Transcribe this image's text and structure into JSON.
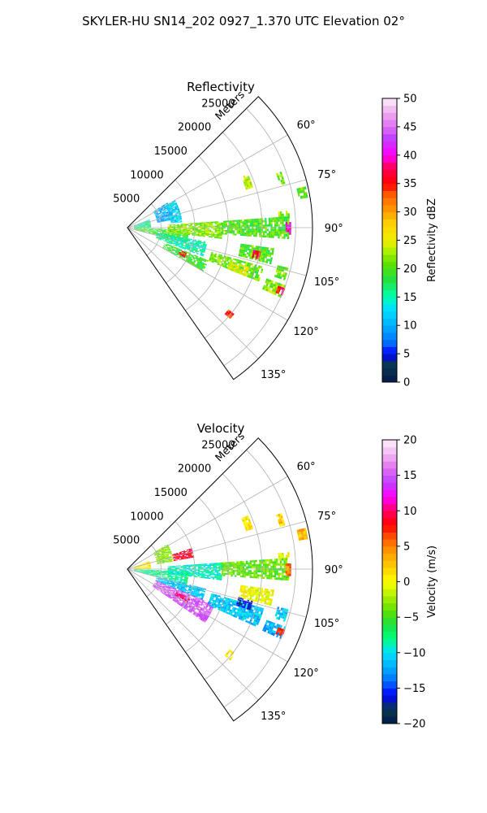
{
  "figure": {
    "suptitle": "SKYLER-HU  SN14_202  0927_1.370 UTC Elevation 02°"
  },
  "chart_data": [
    {
      "type": "heatmap",
      "projection": "polar-sector",
      "title": "Reflectivity",
      "range_label": "Meters",
      "range_ticks": [
        5000,
        10000,
        15000,
        20000,
        25000
      ],
      "range_tick_labels": [
        "5000",
        "10000",
        "15000",
        "20000",
        "25000"
      ],
      "range_max": 27500,
      "azimuth_min_deg": 45,
      "azimuth_max_deg": 145,
      "azimuth_ticks": [
        60,
        75,
        90,
        105,
        120,
        135
      ],
      "azimuth_tick_labels": [
        "60°",
        "75°",
        "90°",
        "105°",
        "120°",
        "135°"
      ],
      "grid": true,
      "colorbar": {
        "label": "Reflectivity dBZ",
        "min": 0,
        "max": 50,
        "ticks": [
          0,
          5,
          10,
          15,
          20,
          25,
          30,
          35,
          40,
          45,
          50
        ],
        "tick_labels": [
          "0",
          "5",
          "10",
          "15",
          "20",
          "25",
          "30",
          "35",
          "40",
          "45",
          "50"
        ]
      },
      "echoes": [
        {
          "az": [
            66,
            72
          ],
          "r": [
            18500,
            19500
          ],
          "v": 24
        },
        {
          "az": [
            70,
            74
          ],
          "r": [
            23500,
            24300
          ],
          "v": 22
        },
        {
          "az": [
            77,
            80
          ],
          "r": [
            25800,
            27200
          ],
          "v": 20
        },
        {
          "az": [
            84,
            86
          ],
          "r": [
            22500,
            24000
          ],
          "v": 22
        },
        {
          "az": [
            58,
            80
          ],
          "r": [
            4500,
            7000
          ],
          "v": 10
        },
        {
          "az": [
            60,
            84
          ],
          "r": [
            6500,
            8000
          ],
          "v": 12
        },
        {
          "az": [
            70,
            90
          ],
          "r": [
            1000,
            3500
          ],
          "v": 16
        },
        {
          "az": [
            92,
            104
          ],
          "r": [
            1000,
            9000
          ],
          "v": 19
        },
        {
          "az": [
            86,
            96
          ],
          "r": [
            6000,
            14000
          ],
          "v": 22
        },
        {
          "az": [
            86,
            94
          ],
          "r": [
            14000,
            24000
          ],
          "v": 20
        },
        {
          "az": [
            88,
            92
          ],
          "r": [
            23500,
            24300
          ],
          "v": 40
        },
        {
          "az": [
            100,
            110
          ],
          "r": [
            4500,
            12000
          ],
          "v": 15
        },
        {
          "az": [
            112,
            120
          ],
          "r": [
            6000,
            13000
          ],
          "v": 19
        },
        {
          "az": [
            113,
            117
          ],
          "r": [
            8500,
            9500
          ],
          "v": 35
        },
        {
          "az": [
            106,
            112
          ],
          "r": [
            13000,
            21000
          ],
          "v": 21
        },
        {
          "az": [
            108,
            112
          ],
          "r": [
            16000,
            19000
          ],
          "v": 25
        },
        {
          "az": [
            98,
            104
          ],
          "r": [
            17000,
            22000
          ],
          "v": 20
        },
        {
          "az": [
            100,
            103
          ],
          "r": [
            19000,
            20000
          ],
          "v": 36
        },
        {
          "az": [
            104,
            108
          ],
          "r": [
            23000,
            24500
          ],
          "v": 21
        },
        {
          "az": [
            110,
            114
          ],
          "r": [
            22000,
            25000
          ],
          "v": 22
        },
        {
          "az": [
            111,
            113
          ],
          "r": [
            24000,
            25000
          ],
          "v": 36
        },
        {
          "az": [
            128,
            131
          ],
          "r": [
            19300,
            20400
          ],
          "v": 34
        }
      ]
    },
    {
      "type": "heatmap",
      "projection": "polar-sector",
      "title": "Velocity",
      "range_label": "Meters",
      "range_ticks": [
        5000,
        10000,
        15000,
        20000,
        25000
      ],
      "range_tick_labels": [
        "5000",
        "10000",
        "15000",
        "20000",
        "25000"
      ],
      "range_max": 27500,
      "azimuth_min_deg": 45,
      "azimuth_max_deg": 145,
      "azimuth_ticks": [
        60,
        75,
        90,
        105,
        120,
        135
      ],
      "azimuth_tick_labels": [
        "60°",
        "75°",
        "90°",
        "105°",
        "120°",
        "135°"
      ],
      "grid": true,
      "colorbar": {
        "label": "Velocity (m/s)",
        "min": -20,
        "max": 20,
        "ticks": [
          -20,
          -15,
          -10,
          -5,
          0,
          5,
          10,
          15,
          20
        ],
        "tick_labels": [
          "−20",
          "−15",
          "−10",
          "−5",
          "0",
          "5",
          "10",
          "15",
          "20"
        ]
      },
      "echoes": [
        {
          "az": [
            66,
            72
          ],
          "r": [
            18500,
            19500
          ],
          "v": 1
        },
        {
          "az": [
            70,
            74
          ],
          "r": [
            23500,
            24300
          ],
          "v": 2
        },
        {
          "az": [
            77,
            80
          ],
          "r": [
            25800,
            27200
          ],
          "v": 3
        },
        {
          "az": [
            84,
            86
          ],
          "r": [
            22500,
            24000
          ],
          "v": 0
        },
        {
          "az": [
            58,
            80
          ],
          "r": [
            4500,
            7000
          ],
          "v": -3
        },
        {
          "az": [
            72,
            80
          ],
          "r": [
            7000,
            10000
          ],
          "v": 9
        },
        {
          "az": [
            70,
            90
          ],
          "r": [
            1000,
            3500
          ],
          "v": 1
        },
        {
          "az": [
            92,
            104
          ],
          "r": [
            1000,
            9000
          ],
          "v": -8
        },
        {
          "az": [
            86,
            96
          ],
          "r": [
            6000,
            14000
          ],
          "v": -9
        },
        {
          "az": [
            86,
            94
          ],
          "r": [
            14000,
            24000
          ],
          "v": -4
        },
        {
          "az": [
            88,
            92
          ],
          "r": [
            23500,
            24300
          ],
          "v": 5
        },
        {
          "az": [
            104,
            112
          ],
          "r": [
            4500,
            12000
          ],
          "v": -11
        },
        {
          "az": [
            112,
            124
          ],
          "r": [
            4500,
            14000
          ],
          "v": 15
        },
        {
          "az": [
            115,
            118
          ],
          "r": [
            8000,
            10000
          ],
          "v": 9
        },
        {
          "az": [
            106,
            114
          ],
          "r": [
            13000,
            21000
          ],
          "v": -11
        },
        {
          "az": [
            104,
            108
          ],
          "r": [
            17000,
            19000
          ],
          "v": -16
        },
        {
          "az": [
            98,
            104
          ],
          "r": [
            17000,
            22000
          ],
          "v": 0
        },
        {
          "az": [
            104,
            108
          ],
          "r": [
            23000,
            24500
          ],
          "v": -11
        },
        {
          "az": [
            110,
            114
          ],
          "r": [
            22000,
            25000
          ],
          "v": -12
        },
        {
          "az": [
            111,
            113
          ],
          "r": [
            24000,
            25000
          ],
          "v": 8
        },
        {
          "az": [
            128,
            131
          ],
          "r": [
            19300,
            20400
          ],
          "v": 2
        }
      ]
    }
  ]
}
